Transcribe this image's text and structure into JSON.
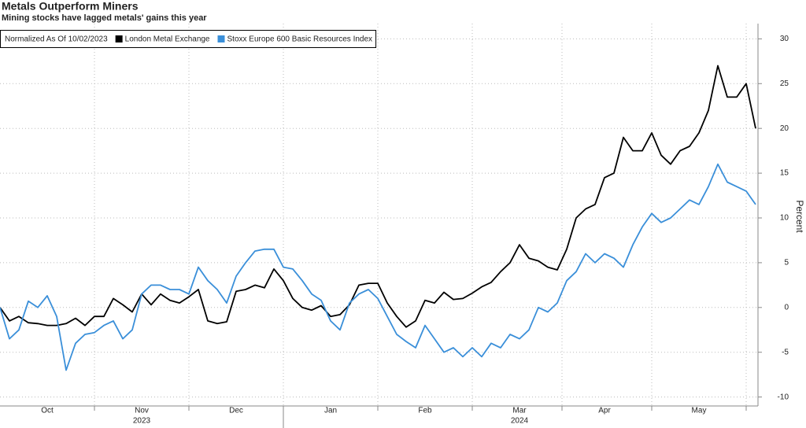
{
  "chart_data": {
    "type": "line",
    "title": "Metals Outperform Miners",
    "subtitle": "Mining stocks have lagged metals' gains this year",
    "legend_title": "Normalized As Of 10/02/2023",
    "y_axis_label": "Percent",
    "categories": [
      null,
      null,
      null,
      null,
      null,
      "Oct",
      null,
      null,
      null,
      null,
      null,
      null,
      null,
      null,
      null,
      "Nov",
      null,
      null,
      null,
      null,
      null,
      null,
      null,
      null,
      null,
      "Dec",
      null,
      null,
      null,
      null,
      null,
      null,
      null,
      null,
      null,
      "Jan",
      null,
      null,
      null,
      null,
      null,
      null,
      null,
      null,
      null,
      "Feb",
      null,
      null,
      null,
      null,
      null,
      null,
      null,
      null,
      null,
      "Mar",
      null,
      null,
      null,
      null,
      null,
      null,
      null,
      null,
      "Apr",
      null,
      null,
      null,
      null,
      null,
      null,
      null,
      null,
      null,
      "May",
      null,
      null,
      null,
      null,
      null,
      null
    ],
    "x_group_labels": [
      "2023",
      "2024"
    ],
    "series": [
      {
        "name": "London Metal Exchange",
        "color": "#000000",
        "values": [
          0,
          -1.5,
          -1,
          -1.7,
          -1.8,
          -2,
          -2,
          -1.8,
          -1.2,
          -2,
          -1,
          -1,
          1,
          0.3,
          -0.5,
          1.5,
          0.3,
          1.5,
          0.8,
          0.5,
          1.2,
          2,
          -1.5,
          -1.8,
          -1.6,
          1.8,
          2,
          2.5,
          2.2,
          4.3,
          3,
          1,
          0,
          -0.3,
          0.2,
          -1,
          -0.8,
          0.3,
          2.5,
          2.7,
          2.7,
          0.5,
          -1,
          -2.2,
          -1.5,
          0.8,
          0.5,
          1.7,
          0.9,
          1,
          1.6,
          2.3,
          2.8,
          4,
          5,
          7,
          5.5,
          5.2,
          4.5,
          4.2,
          6.5,
          10,
          11,
          11.5,
          14.5,
          15,
          19,
          17.5,
          17.5,
          19.5,
          17,
          16,
          17.5,
          18,
          19.5,
          22,
          27,
          23.5,
          23.5,
          25,
          20
        ]
      },
      {
        "name": "Stoxx Europe 600 Basic Resources Index",
        "color": "#3a8fd9",
        "values": [
          0,
          -3.5,
          -2.5,
          0.7,
          0,
          1.3,
          -1,
          -7,
          -4,
          -3,
          -2.8,
          -2,
          -1.5,
          -3.5,
          -2.5,
          1.5,
          2.5,
          2.5,
          2,
          2,
          1.5,
          4.5,
          3,
          2,
          0.5,
          3.5,
          5,
          6.3,
          6.5,
          6.5,
          4.5,
          4.3,
          3,
          1.5,
          0.8,
          -1.5,
          -2.5,
          0.5,
          1.5,
          2,
          1,
          -1,
          -3,
          -3.8,
          -4.5,
          -2,
          -3.5,
          -5,
          -4.5,
          -5.5,
          -4.5,
          -5.5,
          -4,
          -4.5,
          -3,
          -3.5,
          -2.5,
          0,
          -0.5,
          0.5,
          3,
          4,
          6,
          5,
          6,
          5.5,
          4.5,
          7,
          9,
          10.5,
          9.5,
          10,
          11,
          12,
          11.5,
          13.5,
          16,
          14,
          13.5,
          13,
          11.5
        ]
      }
    ],
    "ylim": [
      -11,
      31
    ],
    "yticks": [
      -10,
      -5,
      0,
      5,
      10,
      15,
      20,
      25,
      30
    ],
    "grid": true,
    "legend_position": "top-left"
  }
}
